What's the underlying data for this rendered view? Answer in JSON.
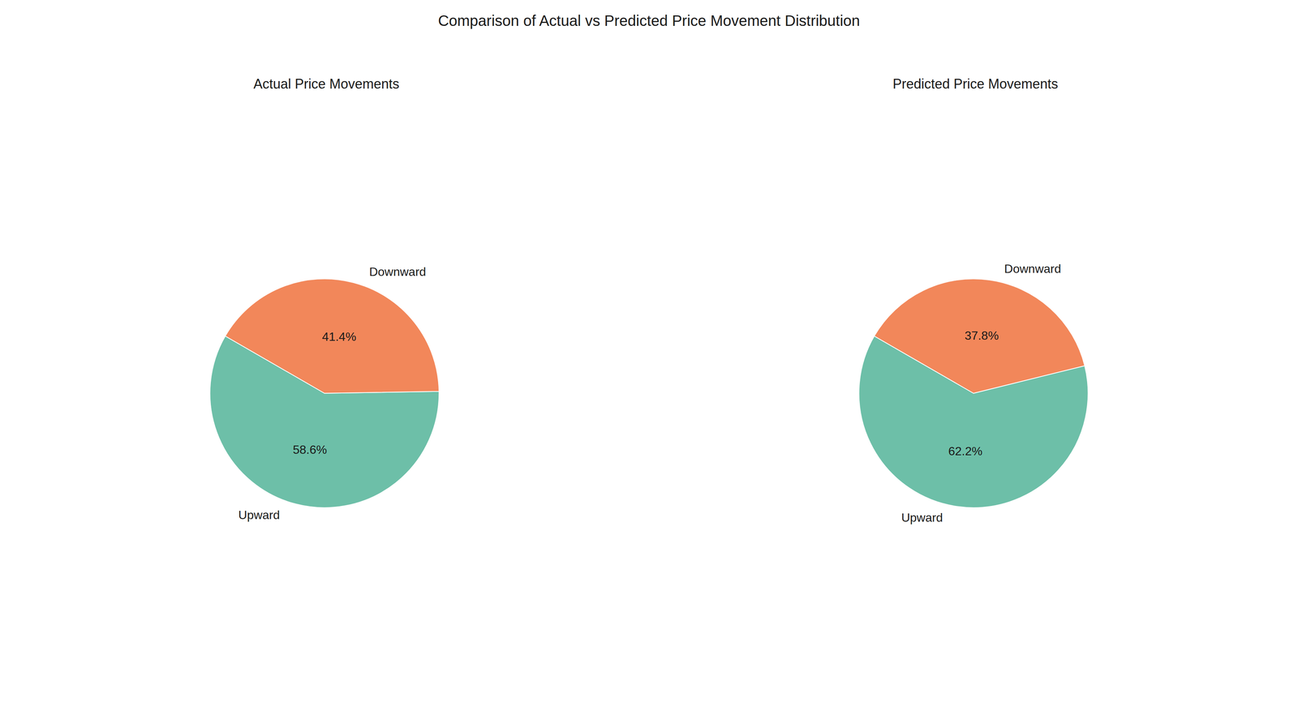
{
  "title": "Comparison of Actual vs Predicted Price Movement Distribution",
  "chart_data": [
    {
      "type": "pie",
      "title": "Actual Price Movements",
      "categories": [
        "Upward",
        "Downward"
      ],
      "values": [
        58.6,
        41.4
      ],
      "value_labels": [
        "58.6%",
        "41.4%"
      ],
      "colors": [
        "#6DBFA8",
        "#F2875A"
      ],
      "data_labels": true,
      "legend": false
    },
    {
      "type": "pie",
      "title": "Predicted Price Movements",
      "categories": [
        "Upward",
        "Downward"
      ],
      "values": [
        62.2,
        37.8
      ],
      "value_labels": [
        "62.2%",
        "37.8%"
      ],
      "colors": [
        "#6DBFA8",
        "#F2875A"
      ],
      "data_labels": true,
      "legend": false
    }
  ]
}
